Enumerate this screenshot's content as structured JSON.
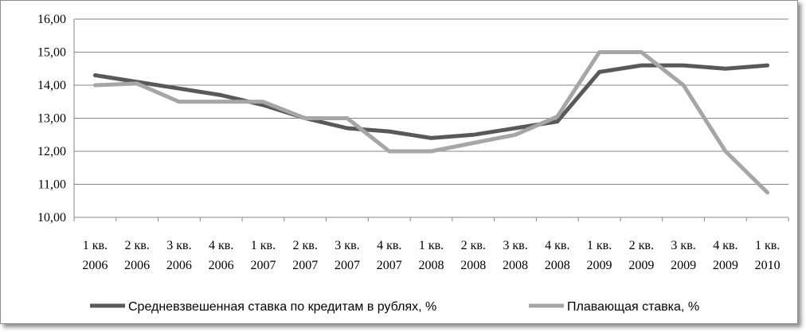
{
  "chart_data": {
    "type": "line",
    "categories": [
      [
        "1 кв.",
        "2006"
      ],
      [
        "2 кв.",
        "2006"
      ],
      [
        "3 кв.",
        "2006"
      ],
      [
        "4 кв.",
        "2006"
      ],
      [
        "1 кв.",
        "2007"
      ],
      [
        "2 кв.",
        "2007"
      ],
      [
        "3 кв.",
        "2007"
      ],
      [
        "4 кв.",
        "2007"
      ],
      [
        "1 кв.",
        "2008"
      ],
      [
        "2 кв.",
        "2008"
      ],
      [
        "3 кв.",
        "2008"
      ],
      [
        "4 кв.",
        "2008"
      ],
      [
        "1 кв.",
        "2009"
      ],
      [
        "2 кв.",
        "2009"
      ],
      [
        "3 кв.",
        "2009"
      ],
      [
        "4 кв.",
        "2009"
      ],
      [
        "1 кв.",
        "2010"
      ]
    ],
    "ylim": [
      10,
      16
    ],
    "yticks": [
      "10,00",
      "11,00",
      "12,00",
      "13,00",
      "14,00",
      "15,00",
      "16,00"
    ],
    "grid": true,
    "legend_position": "bottom",
    "series": [
      {
        "name": "Средневзвешенная ставка по кредитам в рублях, %",
        "color": "#595959",
        "values": [
          14.3,
          14.1,
          13.9,
          13.7,
          13.4,
          13.0,
          12.7,
          12.6,
          12.4,
          12.5,
          12.7,
          12.9,
          14.4,
          14.6,
          14.6,
          14.5,
          14.6
        ]
      },
      {
        "name": "Плавающая ставка, %",
        "color": "#a6a6a6",
        "values": [
          14.0,
          14.05,
          13.5,
          13.5,
          13.5,
          13.0,
          13.0,
          12.0,
          12.0,
          12.25,
          12.5,
          13.05,
          15.0,
          15.0,
          14.0,
          12.0,
          10.75
        ]
      }
    ]
  }
}
